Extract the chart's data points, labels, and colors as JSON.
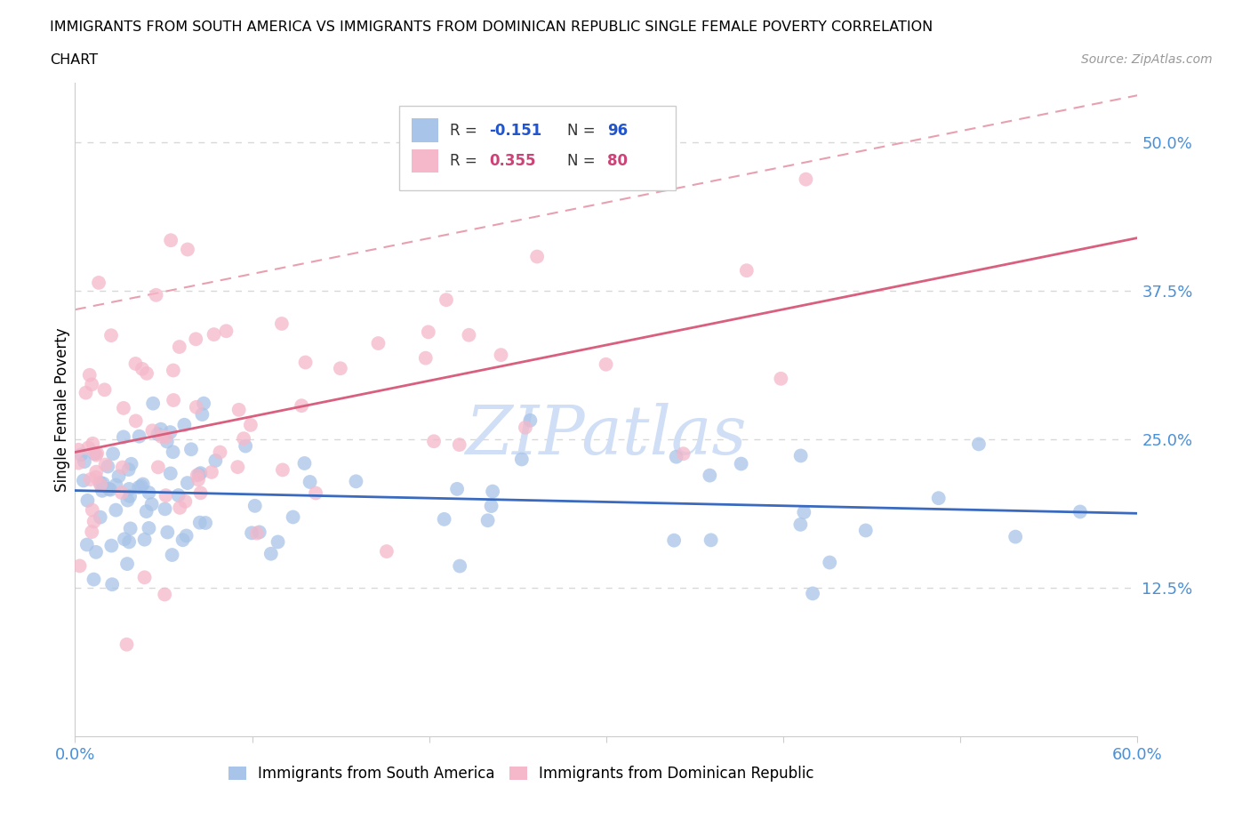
{
  "title_line1": "IMMIGRANTS FROM SOUTH AMERICA VS IMMIGRANTS FROM DOMINICAN REPUBLIC SINGLE FEMALE POVERTY CORRELATION",
  "title_line2": "CHART",
  "source": "Source: ZipAtlas.com",
  "ylabel": "Single Female Poverty",
  "xlim": [
    0.0,
    0.6
  ],
  "ylim": [
    0.0,
    0.55
  ],
  "yticks": [
    0.0,
    0.125,
    0.25,
    0.375,
    0.5
  ],
  "ytick_labels": [
    "",
    "12.5%",
    "25.0%",
    "37.5%",
    "50.0%"
  ],
  "xticks": [
    0.0,
    0.1,
    0.2,
    0.3,
    0.4,
    0.5,
    0.6
  ],
  "xtick_labels": [
    "0.0%",
    "",
    "",
    "",
    "",
    "",
    "60.0%"
  ],
  "R_blue": -0.151,
  "N_blue": 96,
  "R_pink": 0.355,
  "N_pink": 80,
  "blue_color": "#a8c4e8",
  "pink_color": "#f5b8ca",
  "blue_line_color": "#3a6abf",
  "pink_line_color": "#d95f7f",
  "pink_dash_color": "#e8a0b0",
  "tick_label_color": "#4a90d9",
  "watermark_color": "#d0dff5",
  "legend_N_blue_color": "#2255cc",
  "legend_N_pink_color": "#cc4477",
  "legend_R_blue_color": "#2255cc",
  "legend_R_pink_color": "#cc4477",
  "grid_color": "#d8d8d8",
  "spine_color": "#cccccc"
}
